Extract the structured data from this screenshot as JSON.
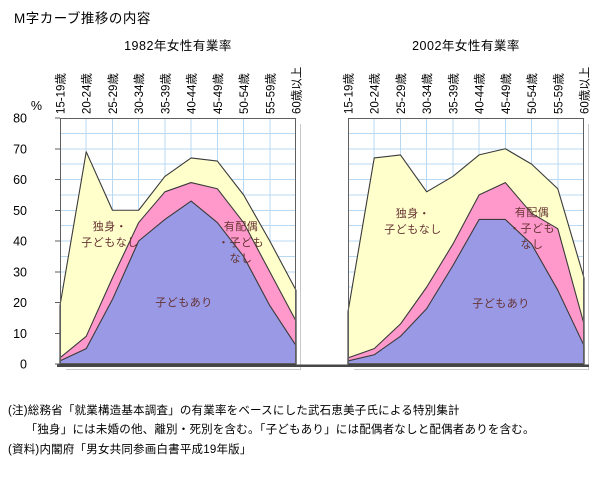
{
  "page_title": "M字カーブ推移の内容",
  "y_axis": {
    "unit": "%",
    "max": 80,
    "tick_step": 10,
    "ticks": [
      80,
      70,
      60,
      50,
      40,
      30,
      20,
      10,
      0
    ]
  },
  "categories": [
    "15-19歳",
    "20-24歳",
    "25-29歳",
    "30-34歳",
    "35-39歳",
    "40-44歳",
    "45-49歳",
    "50-54歳",
    "55-59歳",
    "60歳以上"
  ],
  "colors": {
    "children_fill": "#9999e6",
    "married_no_children_fill": "#ff99cc",
    "single_no_children_fill": "#ffffcc",
    "series_line": "#3a3a3a",
    "grid": "#b9d9f2",
    "axis": "#5f5f5f",
    "axis_shadow": "#c9c9c9",
    "area_label_text": "#663333"
  },
  "chart_data": {
    "type": "area",
    "stacked": true,
    "grid": true,
    "ylabel": "%",
    "ylim": [
      0,
      80
    ],
    "y_minor_grid_step": 5,
    "categories": [
      "15-19歳",
      "20-24歳",
      "25-29歳",
      "30-34歳",
      "35-39歳",
      "40-44歳",
      "45-49歳",
      "50-54歳",
      "55-59歳",
      "60歳以上"
    ],
    "charts": [
      {
        "title": "1982年女性有業率",
        "series": [
          {
            "name": "子どもあり",
            "values": [
              1,
              5,
              21,
              40,
              47,
              53,
              46,
              35,
              19,
              6
            ]
          },
          {
            "name": "有配偶・子どもなし",
            "values": [
              1,
              4,
              7,
              6,
              9,
              6,
              11,
              11,
              11,
              8
            ]
          },
          {
            "name": "独身・子どもなし",
            "values": [
              17,
              60,
              22,
              4,
              5,
              8,
              9,
              9,
              10,
              10
            ]
          }
        ],
        "stacked_totals": [
          19,
          69,
          50,
          50,
          61,
          67,
          66,
          55,
          40,
          24
        ],
        "area_labels": [
          {
            "text": "独身・\n子どもなし"
          },
          {
            "text": "有配偶\n・子ども\nなし"
          },
          {
            "text": "子どもあり"
          }
        ]
      },
      {
        "title": "2002年女性有業率",
        "series": [
          {
            "name": "子どもあり",
            "values": [
              1,
              3,
              9,
              18,
              32,
              47,
              47,
              39,
              24,
              6
            ]
          },
          {
            "name": "有配偶・子どもなし",
            "values": [
              1,
              2,
              4,
              7,
              7,
              8,
              12,
              10,
              20,
              7
            ]
          },
          {
            "name": "独身・子どもなし",
            "values": [
              15,
              62,
              55,
              31,
              22,
              13,
              11,
              16,
              13,
              15
            ]
          }
        ],
        "stacked_totals": [
          17,
          67,
          68,
          56,
          61,
          68,
          70,
          65,
          57,
          28
        ],
        "area_labels": [
          {
            "text": "独身・\n子どもなし"
          },
          {
            "text": "有配偶\n・子ども\nなし"
          },
          {
            "text": "子どもあり"
          }
        ]
      }
    ]
  },
  "notes": [
    "(注)総務省「就業構造基本調査」の有業率をベースにした武石恵美子氏による特別集計",
    "　　「独身」には未婚の他、離別・死別を含む。「子どもあり」には配偶者なしと配偶者ありを含む。",
    "(資料)内閣府「男女共同参画白書平成19年版」"
  ]
}
